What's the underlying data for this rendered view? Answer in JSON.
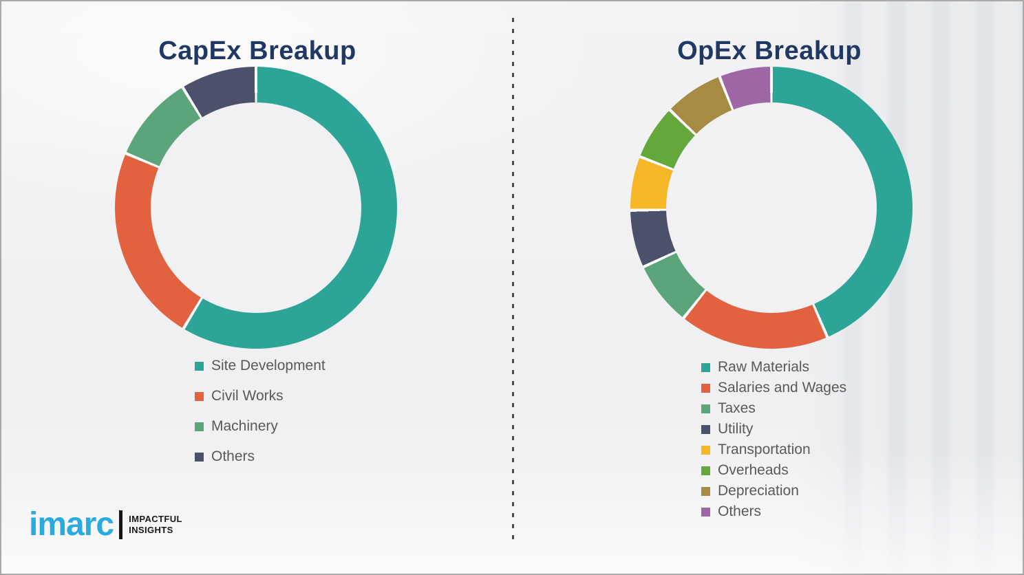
{
  "page": {
    "background_color": "#f1f1f2",
    "title_color": "#1f3864",
    "legend_text_color": "#595959",
    "divider_style": "vertical dashed line"
  },
  "logo": {
    "brand": "imarc",
    "brand_color": "#29abe2",
    "tagline_line1": "IMPACTFUL",
    "tagline_line2": "INSIGHTS"
  },
  "chart_data": [
    {
      "type": "pie",
      "variant": "donut",
      "title": "CapEx Breakup",
      "legend_position": "below-left",
      "value_labels_visible": false,
      "values_estimated_from_angles": true,
      "start_angle_deg": 0,
      "direction": "clockwise",
      "categories": [
        "Site Development",
        "Civil Works",
        "Machinery",
        "Others"
      ],
      "values": [
        58.6,
        22.7,
        10.0,
        8.7
      ],
      "unit": "percent",
      "colors": [
        "#2ca496",
        "#e2613e",
        "#5ca57b",
        "#4b516b"
      ]
    },
    {
      "type": "pie",
      "variant": "donut",
      "title": "OpEx Breakup",
      "legend_position": "below-left",
      "value_labels_visible": false,
      "values_estimated_from_angles": true,
      "start_angle_deg": 0,
      "direction": "clockwise",
      "categories": [
        "Raw Materials",
        "Salaries and Wages",
        "Taxes",
        "Utility",
        "Transportation",
        "Overheads",
        "Depreciation",
        "Others"
      ],
      "values": [
        43.5,
        17.2,
        7.4,
        6.6,
        6.2,
        6.3,
        6.8,
        6.0
      ],
      "unit": "percent",
      "colors": [
        "#2ca496",
        "#e2613e",
        "#5ca57b",
        "#4b516b",
        "#f5b628",
        "#64a83b",
        "#a78b42",
        "#9e66a5"
      ]
    }
  ]
}
